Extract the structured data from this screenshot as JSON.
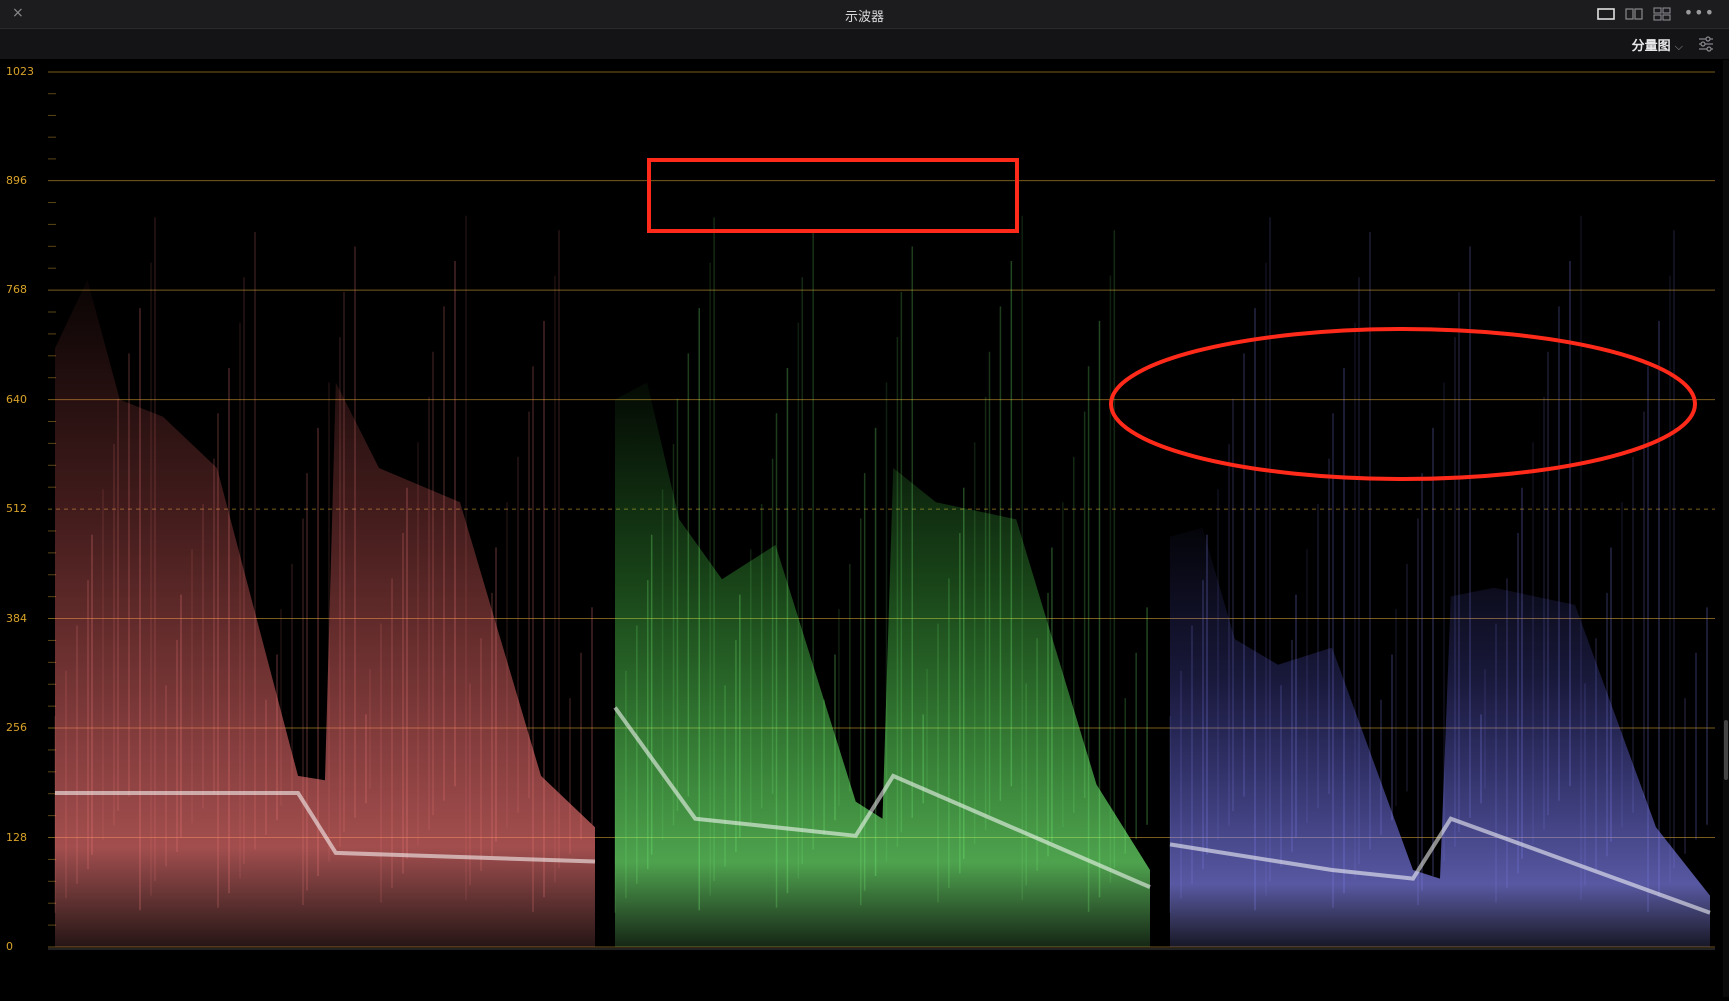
{
  "window": {
    "title": "示波器",
    "close_label": "×",
    "more_label": "•••"
  },
  "toolbar": {
    "mode_label": "分量图",
    "chevron": "⌵"
  },
  "icons": {
    "close": "close-icon",
    "layout_single": "single-view-icon",
    "layout_dual": "dual-view-icon",
    "layout_quad": "quad-view-icon",
    "more": "more-icon",
    "settings": "scope-settings-icon"
  },
  "colors": {
    "graticule": "#d9a32a",
    "red_channel": "#ff5a5a",
    "green_channel": "#5cff5c",
    "blue_channel": "#6a6aff",
    "annotation": "#ff2a1a"
  },
  "scale": {
    "ticks": [
      "1023",
      "896",
      "768",
      "640",
      "512",
      "384",
      "256",
      "128",
      "0"
    ],
    "values": [
      1023,
      896,
      768,
      640,
      512,
      384,
      256,
      128,
      0
    ],
    "max": 1023
  },
  "parade": {
    "channels": [
      "red",
      "green",
      "blue"
    ]
  }
}
